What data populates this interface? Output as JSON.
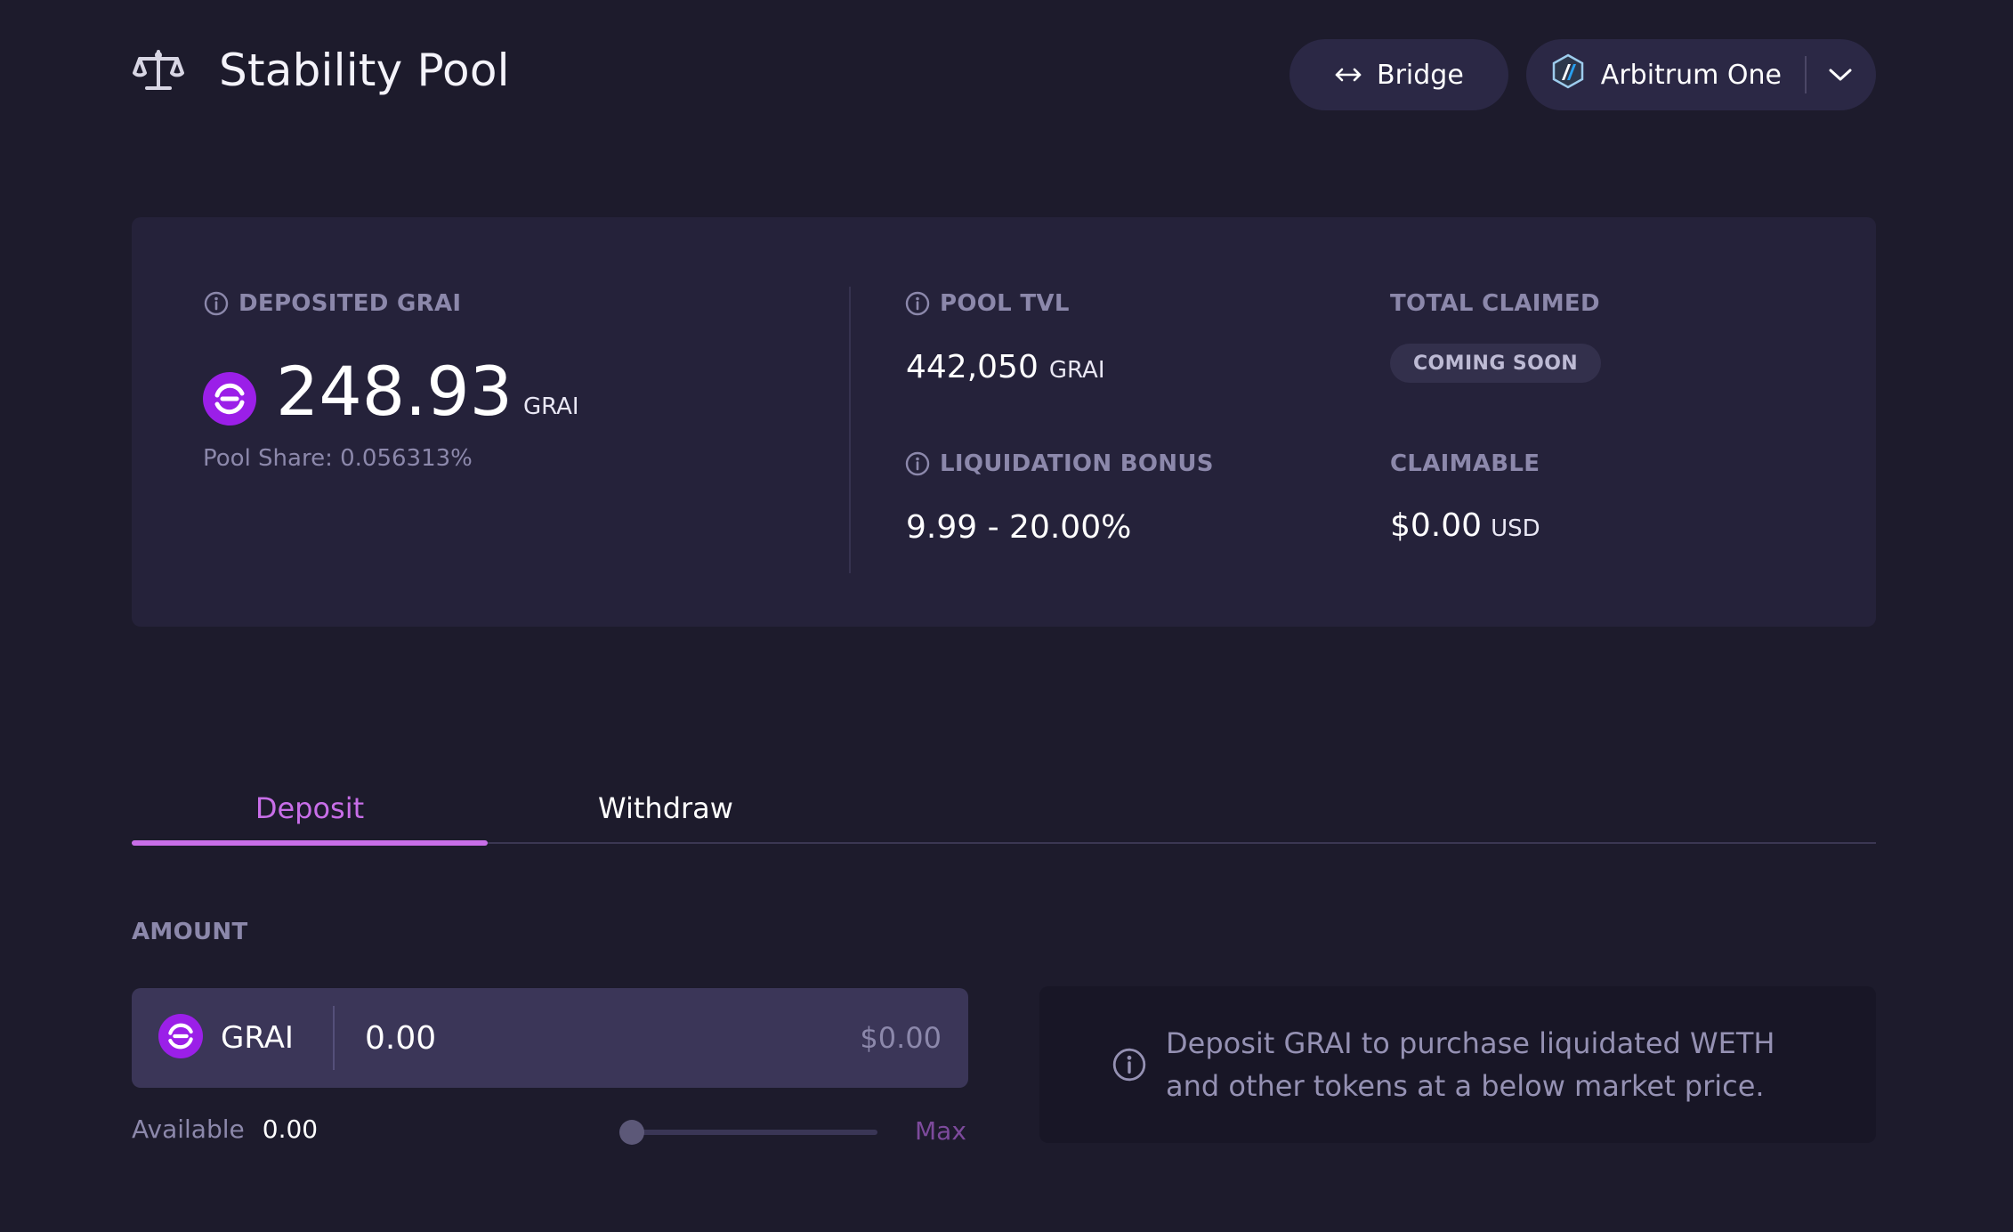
{
  "header": {
    "title": "Stability Pool",
    "title_icon": "balance-scale-icon",
    "bridge_label": "Bridge",
    "bridge_icon": "arrows-left-right-icon",
    "network_label": "Arbitrum One",
    "network_icon": "arbitrum-logo-icon",
    "network_dropdown_icon": "chevron-down-icon"
  },
  "stats": {
    "deposited_label": "DEPOSITED GRAI",
    "deposited_value": "248.93",
    "deposited_unit": "GRAI",
    "pool_share_label": "Pool Share:",
    "pool_share_value": "0.056313%",
    "tvl_label": "POOL TVL",
    "tvl_value": "442,050",
    "tvl_unit": "GRAI",
    "liquidation_label": "LIQUIDATION BONUS",
    "liquidation_value": "9.99 - 20.00%",
    "claimed_label": "TOTAL CLAIMED",
    "claimed_badge": "COMING SOON",
    "claimable_label": "CLAIMABLE",
    "claimable_value": "$0.00",
    "claimable_unit": "USD"
  },
  "tabs": [
    {
      "label": "Deposit",
      "active": true
    },
    {
      "label": "Withdraw",
      "active": false
    }
  ],
  "amount": {
    "label": "AMOUNT",
    "token": "GRAI",
    "value": "0.00",
    "usd_value": "$0.00",
    "available_label": "Available",
    "available_value": "0.00",
    "slider_fraction": 0,
    "max_label": "Max"
  },
  "info": {
    "text": "Deposit GRAI to purchase liquidated WETH and other tokens at a below market price."
  },
  "colors": {
    "background": "#1d1b2c",
    "card": "#25223a",
    "accent": "#c86ee8",
    "grai_brand": "#9b1fe8",
    "muted_text": "#8c88ab"
  }
}
